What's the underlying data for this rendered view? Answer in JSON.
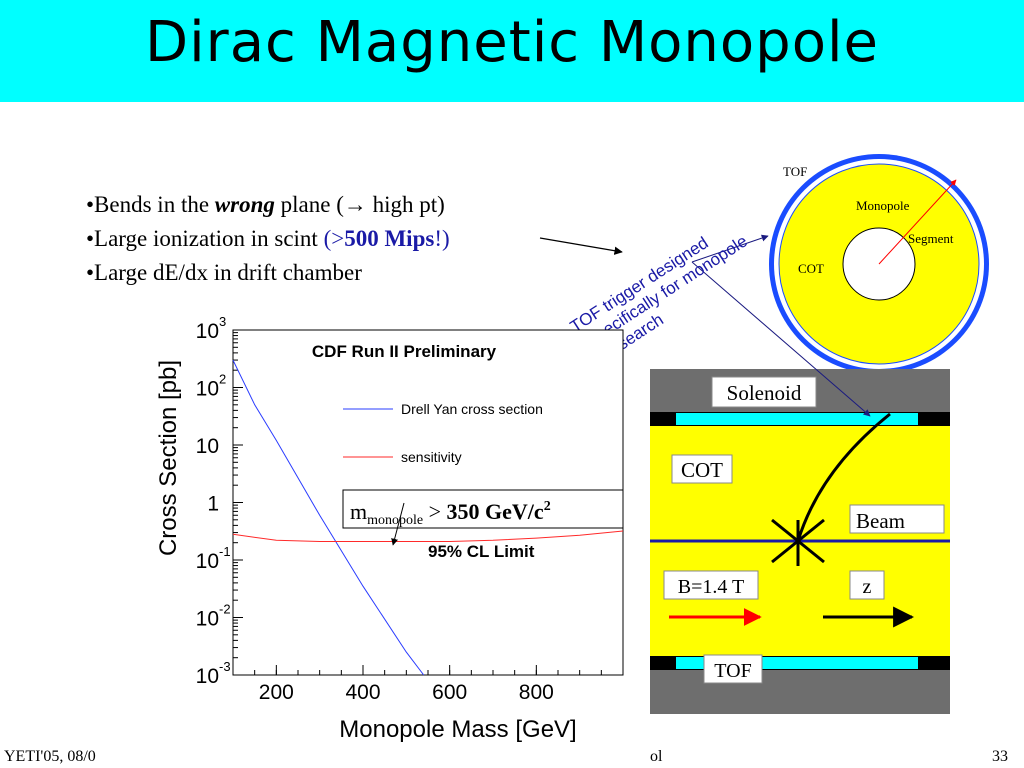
{
  "slide": {
    "title": "Dirac Magnetic Monopole",
    "bullets": [
      {
        "pre": "•Bends in the ",
        "em": "wrong",
        "post": " plane (",
        "arrow": "→",
        "tail": " high pt)"
      },
      {
        "pre": "•Large ionization in scint ",
        "hl_open": "(>",
        "hl_bold": "500 Mips",
        "hl_close": "!)"
      },
      {
        "pre": "•Large dE/dx in drift chamber"
      }
    ],
    "tof_note": [
      "TOF trigger designed",
      "specifically for monopole",
      "search"
    ],
    "footer_left": "YETI'05, 08/0",
    "footer_mid": "ol",
    "page_number": "33"
  },
  "detector": {
    "ring_labels": {
      "tof": "TOF",
      "monopole": "Monopole",
      "segment": "Segment",
      "cot": "COT"
    },
    "side_labels": {
      "solenoid": "Solenoid",
      "cot": "COT",
      "beam": "Beam",
      "field": "B=1.4 T",
      "z": "z",
      "tof": "TOF"
    },
    "colors": {
      "yellow": "#ffff00",
      "cyan": "#00ffff",
      "ring_blue": "#1a4cff",
      "gray": "#6e6e6e"
    }
  },
  "chart_data": {
    "type": "line",
    "title": "CDF Run II Preliminary",
    "xlabel": "Monopole Mass [GeV]",
    "ylabel": "Cross Section [pb]",
    "xlim": [
      100,
      1000
    ],
    "ylim": [
      0.001,
      1000
    ],
    "y_scale": "log",
    "x_ticks": [
      "200",
      "400",
      "600",
      "800"
    ],
    "y_ticks": [
      {
        "base": "10",
        "exp": "3"
      },
      {
        "base": "10",
        "exp": "2"
      },
      {
        "base": "10",
        "exp": ""
      },
      {
        "base": "1",
        "exp": ""
      },
      {
        "base": "10",
        "exp": "-1"
      },
      {
        "base": "10",
        "exp": "-2"
      },
      {
        "base": "10",
        "exp": "-3"
      }
    ],
    "series": [
      {
        "name": "Drell Yan cross section",
        "color": "#2a3cff",
        "x": [
          100,
          150,
          200,
          300,
          400,
          500,
          540
        ],
        "y": [
          300,
          50,
          12,
          0.6,
          0.035,
          0.0025,
          0.001
        ]
      },
      {
        "name": "sensitivity",
        "color": "#ff2a2a",
        "x": [
          100,
          200,
          300,
          400,
          500,
          600,
          700,
          800,
          900,
          1000
        ],
        "y": [
          0.28,
          0.22,
          0.21,
          0.21,
          0.21,
          0.21,
          0.22,
          0.24,
          0.27,
          0.32
        ]
      }
    ],
    "annotations": {
      "limit_box": {
        "m": "m",
        "sub": "monopole",
        "rel": " > ",
        "value": "350 GeV/c",
        "sup": "2"
      },
      "cl_label": "95% CL Limit"
    }
  }
}
